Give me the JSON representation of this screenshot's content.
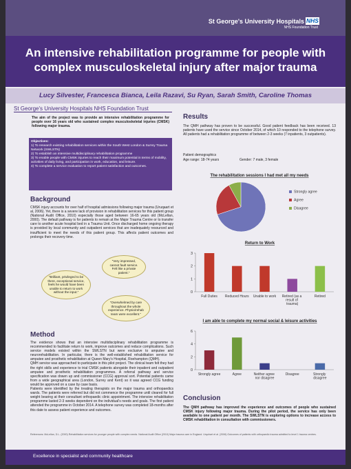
{
  "header": {
    "org": "St George's University Hospitals",
    "nhs": "NHS",
    "trust": "NHS Foundation Trust"
  },
  "title": "An intensive rehabilitation programme for people with complex musculoskeletal injury after major trauma",
  "authors": "Lucy Silvester, Francesca Bianca, Leila Razavi, Su Ryan, Sarah Smith, Caroline Thomas",
  "trust_banner": "St George's University Hospitals NHS Foundation Trust",
  "aim": "The aim of the project was to provide an intensive rehabilitation programme for people over 16 years old who sustained complex musculoskeletal injuries (CMSK) following major trauma.",
  "objectives": {
    "title": "Objectives:",
    "items": [
      "1) To research existing rehabilitation services within the South West London & Surrey Trauma Network (SWLSTN)",
      "2) To establish an intensive multidisciplinary rehabilitation programme",
      "3) To enable people with CMSK injuries to reach their maximum potential in terms of mobility, activities of daily living, and participation in work, education, and leisure.",
      "4) To complete a service evaluation to report patient satisfaction and outcomes."
    ]
  },
  "background": {
    "heading": "Background",
    "text": "CMSK injury accounts for over half of hospital admissions following major trauma (Uruqaart et al, 2006). Yet, there is a severe lack of provision in rehabilitation services for this patient group (National Audit Office, 2010) especially those aged between 16-65 years old (McLellan, 2000). The default pathway is for patients to remain at the Major Trauma Centre or to transfer care to another acute hospital bed in a Trauma Unit. Once discharged home ongoing therapy is provided by local community and outpatient services that are inadequately resourced and insufficient to meet the needs of this patient group. This affects patient outcomes and prolongs their recovery time."
  },
  "quotes": [
    "“Very impressed, cannot fault service. Felt like a private patient.”",
    "“Brilliant, privileged to be there, exceptional service, feels he would have been unable to return to work without the input.”",
    "“Overwhelmed by care throughout the whole experience. Physio/rehab team were excellent.”"
  ],
  "method": {
    "heading": "Method",
    "paragraphs": [
      "The evidence shows that an intensive multidisciplinary rehabilitation programme is recommended to facilitate return to work, improve outcomes and reduce complications. Such service models existed within the SWLSTN but were exclusive to amputee and neurorehabilitation. In particular, there is the well-established rehabilitation service for amputee and prosthetic rehabilitation at Queen Mary's Hospital, Roehampton (QMH).",
      "QMH service was approached to participate in this pilot project. The clinical team felt they had the right skills and experience to trial CMSK patients alongside their inpatient and outpatient amputee and prosthetic rehabilitation programmes. A referral pathway and service specification was drawn up and commissioner (CCG) approval sort. Potential patients came from a wide geographical area (London, Surrey and Kent) so it was agreed CCG funding would be approved on a case by case basis.",
      "Patients were identified by the treating therapists on the major trauma and orthopaedics wards. The patients were referred but did not commence the programme until cleared for full weight bearing at their consultant orthopaedic clinic appointment. The intensive rehabilitation programme lasted 2-3 weeks dependent on the individual's needs and goals. The first patient attended the programme in October 2014. A telephone survey was completed 18-months after this date to assess patient experience and outcomes."
    ]
  },
  "references": "References: McLellan, D.L. (2000) Rehabilitation services for younger people with complex needs. National Audit Office (2010) Major trauma care in England. Urquhart et al. (2006) Outcomes of patients with orthopaedic trauma admitted to level 1 trauma centres.",
  "results": {
    "heading": "Results",
    "text": "The QMH pathway has proven to be successful. Good patient feedback has been received. 13 patients have used the service since October 2014, of which 10 responded to the telephone survey. All patients had a rehabilitation programme of between 2-3 weeks (7 inpatients, 3 outpatients).",
    "demographics_title": "Patient demographics",
    "age": "Age range: 18-74 years",
    "gender": "Gender: 7 male, 3 female"
  },
  "conclusion": {
    "heading": "Conclusion",
    "text": "The QMH pathway has improved the experience and outcomes of people who sustained CMSK injury following major trauma. During the pilot period, the service has only been available to one patient per month. The SWLSTN is exploring options to increase access to CMSK rehabilitation in consultation with commissioners."
  },
  "footer": "Excellence in specialist and community healthcare",
  "chart_data": [
    {
      "type": "pie",
      "title": "The rehabilitation sessions I had met all my needs",
      "categories": [
        "Strongly agree",
        "Agree",
        "Disagree"
      ],
      "values": [
        70,
        22,
        8
      ],
      "colors": [
        "#6f74b8",
        "#b8383a",
        "#8cae4a"
      ],
      "legend": "right"
    },
    {
      "type": "bar",
      "title": "Return to Work",
      "categories": [
        "Full Duties",
        "Reduced Hours",
        "Unable to work",
        "Retired (as a result of trauma)",
        "Retired"
      ],
      "values": [
        3,
        2,
        2,
        1,
        2
      ],
      "colors": [
        "#c0392b",
        "#c0392b",
        "#c0392b",
        "#8e4a9e",
        "#8cbf4a"
      ],
      "ylim": [
        0,
        3
      ],
      "yticks": [
        0,
        1,
        2,
        3
      ],
      "grid": false
    },
    {
      "type": "bar",
      "title": "I am able to complete my normal social & leisure activities",
      "categories": [
        "Strongly agree",
        "Agree",
        "Neither agree nor disagree",
        "Disagree",
        "Strongly disagree"
      ],
      "values": [
        3,
        5,
        1,
        0,
        1
      ],
      "colors": [
        "#8e2a3a",
        "#6f9a3a",
        "#3b3f8a",
        "#6a3f8a",
        "#4a6aa8"
      ],
      "ylim": [
        0,
        6
      ],
      "yticks": [
        0,
        2,
        4,
        6
      ],
      "grid": false
    }
  ]
}
